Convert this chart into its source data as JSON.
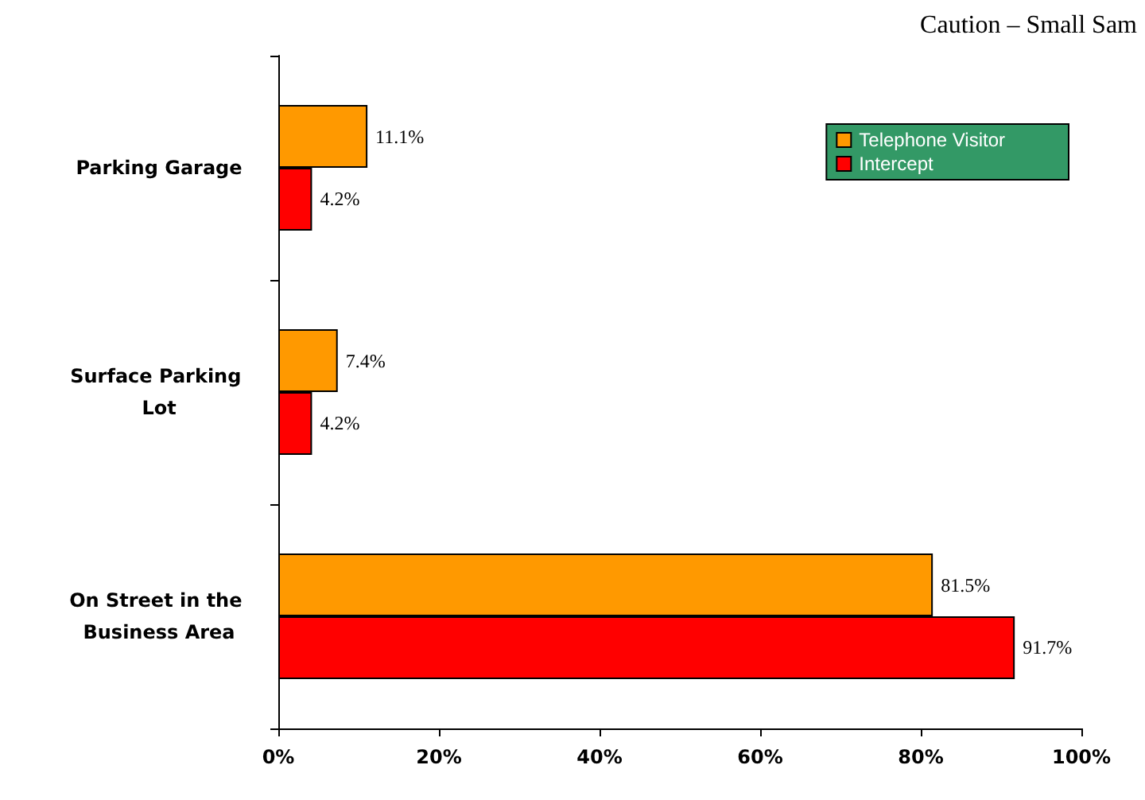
{
  "chart_data": {
    "type": "bar",
    "orientation": "horizontal",
    "categories": [
      "Parking Garage",
      "Surface Parking Lot",
      "On Street in the Business Area"
    ],
    "series": [
      {
        "name": "Telephone Visitor",
        "color": "#ff9900",
        "values": [
          11.1,
          7.4,
          81.5
        ],
        "value_labels": [
          "11.1%",
          "7.4%",
          "81.5%"
        ]
      },
      {
        "name": "Intercept",
        "color": "#ff0000",
        "values": [
          4.2,
          4.2,
          91.7
        ],
        "value_labels": [
          "4.2%",
          "4.2%",
          "91.7%"
        ]
      }
    ],
    "xlim": [
      0,
      100
    ],
    "xticks": [
      {
        "value": 0,
        "label": "0%"
      },
      {
        "value": 20,
        "label": "20%"
      },
      {
        "value": 40,
        "label": "40%"
      },
      {
        "value": 60,
        "label": "60%"
      },
      {
        "value": 80,
        "label": "80%"
      },
      {
        "value": 100,
        "label": "100%"
      }
    ],
    "annotations": [
      "Caution – Small Sam"
    ],
    "legend": "top right",
    "grid": false
  }
}
